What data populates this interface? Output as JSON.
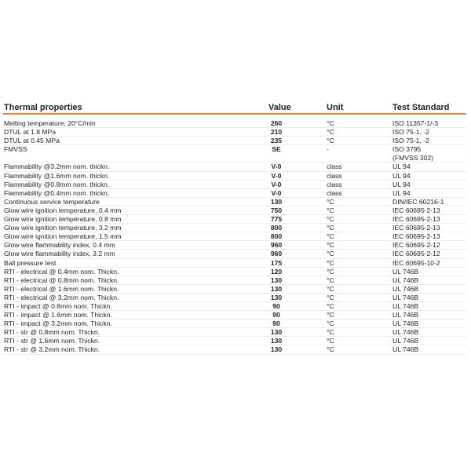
{
  "header": {
    "property": "Thermal properties",
    "value": "Value",
    "unit": "Unit",
    "standard": "Test Standard"
  },
  "accent_color": "#e8843a",
  "rows": [
    {
      "property": "Melting temperature, 20°C/min",
      "value": "260",
      "unit": "°C",
      "standard": "ISO 11357-1/-3"
    },
    {
      "property": "DTUL at 1.8 MPa",
      "value": "210",
      "unit": "°C",
      "standard": "ISO 75-1, -2"
    },
    {
      "property": "DTUL at 0.45 MPa",
      "value": "235",
      "unit": "°C",
      "standard": "ISO 75-1, -2"
    },
    {
      "property": "FMVSS",
      "value": "SE",
      "unit": "-",
      "standard": "ISO 3795\n(FMVSS 302)"
    },
    {
      "property": "Flammability @3.2mm nom. thickn.",
      "value": "V-0",
      "unit": "class",
      "standard": "UL 94"
    },
    {
      "property": "Flammability @1.6mm nom. thickn.",
      "value": "V-0",
      "unit": "class",
      "standard": "UL 94"
    },
    {
      "property": "Flammability @0.8mm nom. thickn.",
      "value": "V-0",
      "unit": "class",
      "standard": "UL 94"
    },
    {
      "property": "Flammability @0.4mm nom. thickn.",
      "value": "V-0",
      "unit": "class",
      "standard": "UL 94"
    },
    {
      "property": "Continuous service temperature",
      "value": "130",
      "unit": "°C",
      "standard": "DIN/IEC 60216-1"
    },
    {
      "property": "Glow wire ignition temperature, 0.4 mm",
      "value": "750",
      "unit": "°C",
      "standard": "IEC 60695-2-13"
    },
    {
      "property": "Glow wire ignition temperature, 0.8 mm",
      "value": "775",
      "unit": "°C",
      "standard": "IEC 60695-2-13"
    },
    {
      "property": "Glow wire ignition temperature, 3.2 mm",
      "value": "800",
      "unit": "°C",
      "standard": "IEC 60695-2-13"
    },
    {
      "property": "Glow wire ignition temperature, 1.5 mm",
      "value": "800",
      "unit": "°C",
      "standard": "IEC 60695-2-13"
    },
    {
      "property": "Glow wire flammability index, 0.4 mm",
      "value": "960",
      "unit": "°C",
      "standard": "IEC 60695-2-12"
    },
    {
      "property": "Glow wire flammability index, 3.2 mm",
      "value": "960",
      "unit": "°C",
      "standard": "IEC 60695-2-12"
    },
    {
      "property": "Ball pressure test",
      "value": "175",
      "unit": "°C",
      "standard": "IEC 60695-10-2"
    },
    {
      "property": "RTI - electrical @ 0.4mm nom. Thickn.",
      "value": "120",
      "unit": "°C",
      "standard": "UL 746B"
    },
    {
      "property": "RTI - electrical @ 0.8mm nom. Thickn.",
      "value": "130",
      "unit": "°C",
      "standard": "UL 746B"
    },
    {
      "property": "RTI - electrical @ 1.6mm nom. Thickn.",
      "value": "130",
      "unit": "°C",
      "standard": "UL 746B"
    },
    {
      "property": "RTI - electrical @ 3.2mm nom. Thickn.",
      "value": "130",
      "unit": "°C",
      "standard": "UL 746B"
    },
    {
      "property": "RTI - impact @ 0.8mm nom. Thickn.",
      "value": "90",
      "unit": "°C",
      "standard": "UL 746B"
    },
    {
      "property": "RTI - impact @ 1.6mm nom. Thickn.",
      "value": "90",
      "unit": "°C",
      "standard": "UL 746B"
    },
    {
      "property": "RTI - impact @ 3.2mm nom. Thickn.",
      "value": "90",
      "unit": "°C",
      "standard": "UL 746B"
    },
    {
      "property": "RTI - str @ 0.8mm nom. Thickn.",
      "value": "130",
      "unit": "°C",
      "standard": "UL 746B"
    },
    {
      "property": "RTI - str @ 1.6mm nom. Thickn.",
      "value": "130",
      "unit": "°C",
      "standard": "UL 746B"
    },
    {
      "property": "RTI - str @ 3.2mm nom. Thickn.",
      "value": "130",
      "unit": "°C",
      "standard": "UL 746B"
    }
  ]
}
